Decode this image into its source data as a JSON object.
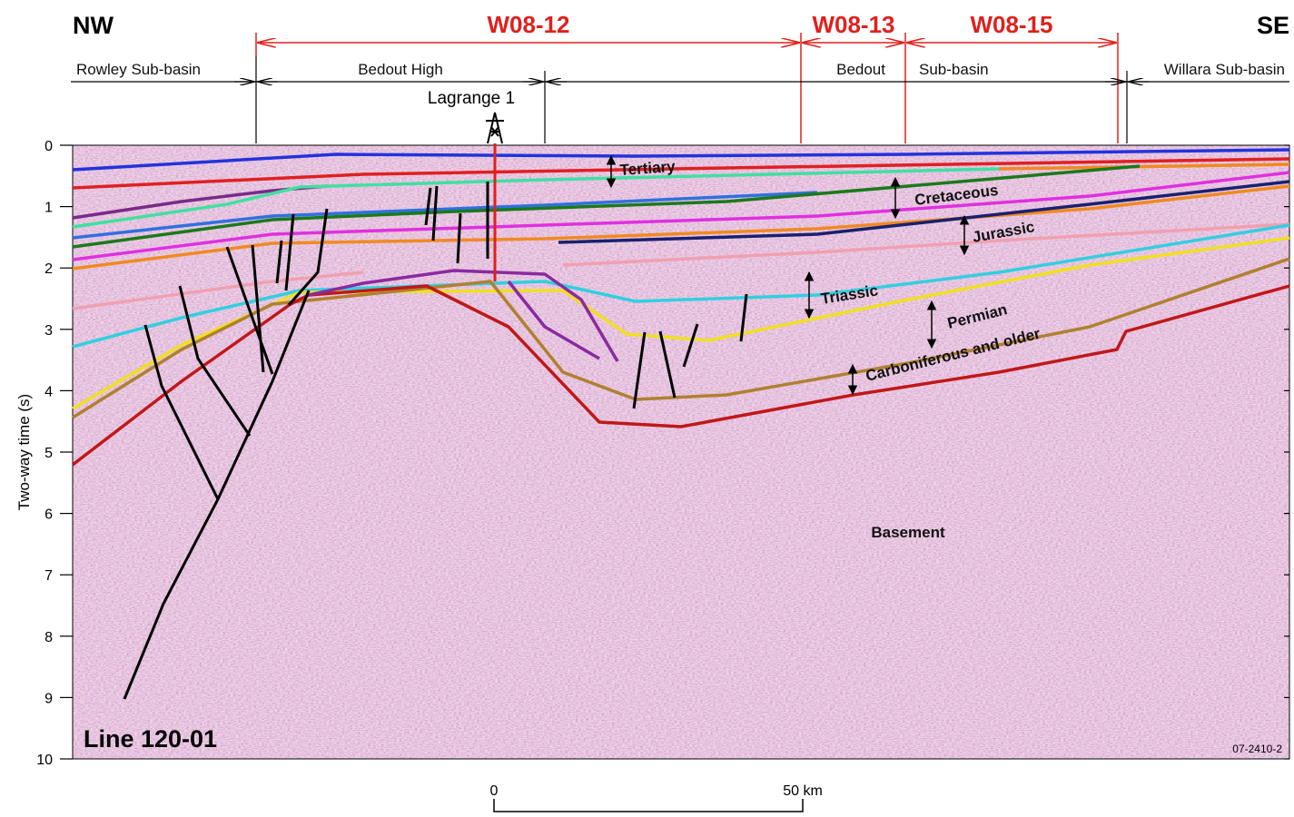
{
  "corners": {
    "left": "NW",
    "right": "SE"
  },
  "surveys": [
    "W08-12",
    "W08-13",
    "W08-15"
  ],
  "basins": [
    "Rowley Sub-basin",
    "Bedout High",
    "Bedout",
    "Sub-basin",
    "Willara Sub-basin"
  ],
  "well": "Lagrange 1",
  "axis": {
    "label": "Two-way time (s)",
    "lim": [
      0,
      10
    ],
    "ticks": [
      0,
      1,
      2,
      3,
      4,
      5,
      6,
      7,
      8,
      9,
      10
    ]
  },
  "units": [
    "Tertiary",
    "Cretaceous",
    "Jurassic",
    "Triassic",
    "Permian",
    "Carboniferous and older",
    "Basement"
  ],
  "line_name": "Line 120-01",
  "figure_id": "07-2410-2",
  "scale": {
    "start": "0",
    "end": "50 km"
  }
}
